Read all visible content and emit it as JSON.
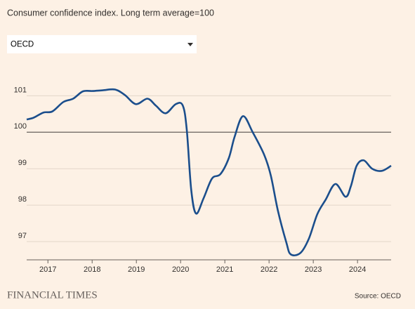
{
  "chart_data": {
    "type": "line",
    "title": "Consumer confidence index. Long term average=100",
    "x": [
      2016.52,
      2016.68,
      2016.9,
      2017.1,
      2017.35,
      2017.57,
      2017.79,
      2018.01,
      2018.24,
      2018.52,
      2018.74,
      2018.99,
      2019.25,
      2019.44,
      2019.66,
      2019.89,
      2020.05,
      2020.14,
      2020.24,
      2020.35,
      2020.52,
      2020.71,
      2020.9,
      2021.09,
      2021.22,
      2021.41,
      2021.63,
      2021.89,
      2022.04,
      2022.2,
      2022.39,
      2022.49,
      2022.71,
      2022.9,
      2023.09,
      2023.28,
      2023.5,
      2023.73,
      2023.85,
      2023.98,
      2024.14,
      2024.33,
      2024.55,
      2024.76
    ],
    "series": [
      {
        "name": "OECD",
        "color": "#1b4e8c",
        "values": [
          100.35,
          100.4,
          100.54,
          100.57,
          100.83,
          100.92,
          101.12,
          101.13,
          101.15,
          101.17,
          101.02,
          100.77,
          100.92,
          100.73,
          100.52,
          100.77,
          100.73,
          100.06,
          98.42,
          97.77,
          98.19,
          98.73,
          98.85,
          99.29,
          99.87,
          100.44,
          100.0,
          99.38,
          98.81,
          97.85,
          96.98,
          96.65,
          96.69,
          97.08,
          97.75,
          98.15,
          98.58,
          98.23,
          98.52,
          99.08,
          99.23,
          99.0,
          98.94,
          99.08
        ]
      }
    ],
    "xlim": [
      2016.52,
      2024.76
    ],
    "xticks": [
      2017,
      2018,
      2019,
      2020,
      2021,
      2022,
      2023,
      2024
    ],
    "ylim": [
      96.5,
      101.7
    ],
    "yticks": [
      97,
      98,
      99,
      100,
      101
    ],
    "baseline": 100,
    "grid": true
  },
  "dropdown": {
    "selected": "OECD"
  },
  "footer": {
    "brand": "FINANCIAL TIMES",
    "source": "Source: OECD"
  }
}
